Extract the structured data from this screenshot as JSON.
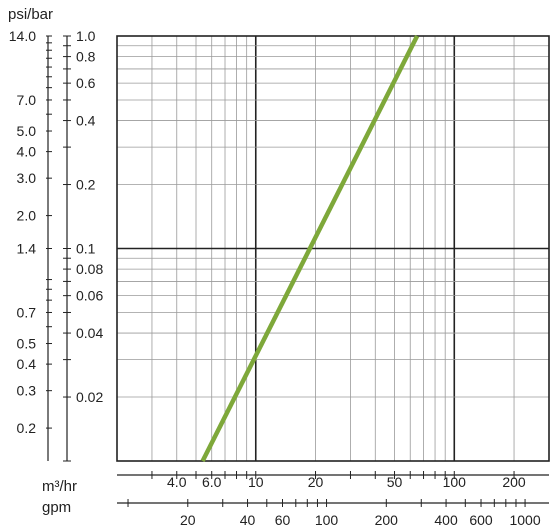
{
  "chart_data": {
    "type": "line",
    "title": "",
    "ylabel": "psi/bar",
    "xlabel_flow": "m³/hr",
    "xlabel_gpm": "gpm",
    "scale": "log-log",
    "grid": true,
    "colors": {
      "series": "#7ea83a",
      "grid": "#9a9a9a",
      "major_grid": "#222222",
      "text": "#222222"
    },
    "x_axis_m3hr": {
      "range": [
        2,
        300
      ],
      "tick_labels": [
        {
          "value": 4,
          "text": "4.0"
        },
        {
          "value": 6,
          "text": "6.0"
        },
        {
          "value": 10,
          "text": "10"
        },
        {
          "value": 20,
          "text": "20"
        },
        {
          "value": 50,
          "text": "50"
        },
        {
          "value": 100,
          "text": "100"
        },
        {
          "value": 200,
          "text": "200"
        }
      ],
      "minor_ticks": [
        3,
        4,
        5,
        6,
        7,
        8,
        9,
        10,
        20,
        30,
        40,
        50,
        60,
        70,
        80,
        90,
        100,
        200
      ]
    },
    "x_axis_gpm": {
      "tick_labels": [
        {
          "value": 20,
          "text": "20"
        },
        {
          "value": 40,
          "text": "40"
        },
        {
          "value": 60,
          "text": "60"
        },
        {
          "value": 100,
          "text": "100"
        },
        {
          "value": 200,
          "text": "200"
        },
        {
          "value": 400,
          "text": "400"
        },
        {
          "value": 600,
          "text": "600"
        },
        {
          "value": 1000,
          "text": "1000"
        }
      ],
      "minor_ticks": [
        10,
        20,
        30,
        40,
        50,
        60,
        70,
        80,
        90,
        100,
        200,
        300,
        400,
        500,
        600,
        700,
        800,
        900,
        1000
      ]
    },
    "y_axis_bar": {
      "range": [
        0.01,
        1.0
      ],
      "tick_labels": [
        {
          "value": 1.0,
          "text": "1.0"
        },
        {
          "value": 0.8,
          "text": "0.8"
        },
        {
          "value": 0.6,
          "text": "0.6"
        },
        {
          "value": 0.4,
          "text": "0.4"
        },
        {
          "value": 0.2,
          "text": "0.2"
        },
        {
          "value": 0.1,
          "text": "0.1"
        },
        {
          "value": 0.08,
          "text": "0.08"
        },
        {
          "value": 0.06,
          "text": "0.06"
        },
        {
          "value": 0.04,
          "text": "0.04"
        },
        {
          "value": 0.02,
          "text": "0.02"
        }
      ],
      "minor_ticks": [
        1.0,
        0.9,
        0.8,
        0.7,
        0.6,
        0.5,
        0.4,
        0.3,
        0.2,
        0.1,
        0.09,
        0.08,
        0.07,
        0.06,
        0.05,
        0.04,
        0.03,
        0.02,
        0.01
      ]
    },
    "y_axis_psi": {
      "tick_labels": [
        {
          "value": 14.0,
          "text": "14.0"
        },
        {
          "value": 7.0,
          "text": "7.0"
        },
        {
          "value": 5.0,
          "text": "5.0"
        },
        {
          "value": 4.0,
          "text": "4.0"
        },
        {
          "value": 3.0,
          "text": "3.0"
        },
        {
          "value": 2.0,
          "text": "2.0"
        },
        {
          "value": 1.4,
          "text": "1.4"
        },
        {
          "value": 0.7,
          "text": "0.7"
        },
        {
          "value": 0.5,
          "text": "0.5"
        },
        {
          "value": 0.4,
          "text": "0.4"
        },
        {
          "value": 0.3,
          "text": "0.3"
        },
        {
          "value": 0.2,
          "text": "0.2"
        }
      ],
      "minor_ticks": [
        14,
        13,
        12,
        11,
        10,
        9,
        8,
        7,
        6,
        5,
        4,
        3,
        2,
        1.4,
        1,
        0.9,
        0.8,
        0.7,
        0.6,
        0.5,
        0.4,
        0.3,
        0.2
      ]
    },
    "gridlines_x": [
      3,
      4,
      5,
      6,
      7,
      8,
      9,
      10,
      20,
      30,
      40,
      50,
      60,
      70,
      80,
      90,
      100,
      200,
      300
    ],
    "gridlines_y": [
      1.0,
      0.9,
      0.8,
      0.7,
      0.6,
      0.5,
      0.4,
      0.3,
      0.2,
      0.1,
      0.09,
      0.08,
      0.07,
      0.06,
      0.05,
      0.04,
      0.03,
      0.02,
      0.01
    ],
    "major_gridlines_x": [
      10,
      100
    ],
    "major_gridlines_y": [
      0.1
    ],
    "series": [
      {
        "x": [
          5.4,
          65
        ],
        "y": [
          0.01,
          1.0
        ]
      }
    ]
  }
}
